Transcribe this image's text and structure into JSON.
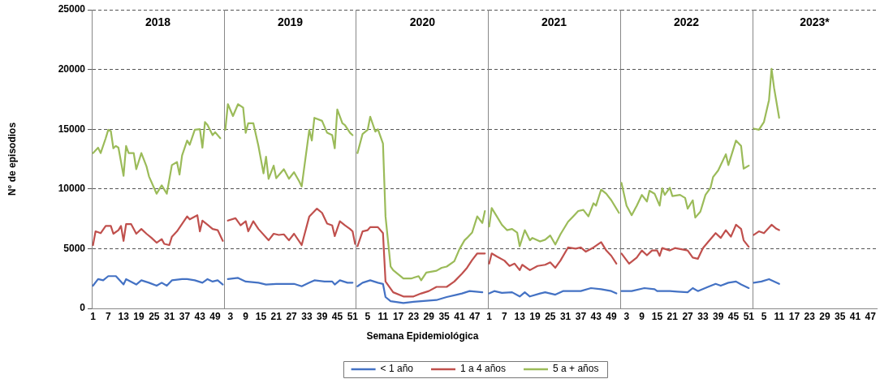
{
  "chart_data": [
    {
      "type": "line",
      "title": "2018",
      "ylabel": "N° de episodios",
      "xlim": [
        0.5,
        52.5
      ],
      "xticks": [
        1,
        7,
        13,
        19,
        25,
        31,
        37,
        43,
        49
      ],
      "ylim": [
        0,
        25000
      ],
      "yticks": [
        0,
        5000,
        10000,
        15000,
        20000,
        25000
      ],
      "grid": "y",
      "marker": "none",
      "line_style": "solid",
      "series": [
        {
          "color": "#4472c4",
          "x": [
            1,
            3,
            5,
            7,
            10,
            13,
            14,
            18,
            20,
            23,
            26,
            28,
            30,
            32,
            36,
            38,
            41,
            44,
            46,
            48,
            50,
            52
          ],
          "values": [
            1900,
            2450,
            2350,
            2700,
            2700,
            2000,
            2450,
            2000,
            2350,
            2150,
            1900,
            2150,
            1900,
            2350,
            2450,
            2450,
            2350,
            2150,
            2450,
            2250,
            2350,
            2000
          ]
        },
        {
          "color": "#c0504d",
          "x": [
            1,
            2,
            4,
            6,
            8,
            9,
            11,
            12,
            13,
            14,
            16,
            18,
            20,
            22,
            24,
            26,
            28,
            29,
            31,
            32,
            34,
            38,
            39,
            42,
            43,
            44,
            46,
            48,
            50,
            52
          ],
          "values": [
            5300,
            6450,
            6300,
            6900,
            6900,
            6250,
            6550,
            6900,
            5650,
            7050,
            7050,
            6250,
            6650,
            6250,
            5900,
            5500,
            5800,
            5400,
            5300,
            6000,
            6450,
            7700,
            7450,
            7800,
            6450,
            7350,
            7000,
            6650,
            6550,
            5650
          ]
        },
        {
          "color": "#9bbb59",
          "x": [
            1,
            3,
            4,
            6,
            7,
            8,
            9,
            10,
            11,
            13,
            14,
            15,
            17,
            18,
            20,
            22,
            23,
            26,
            28,
            30,
            32,
            34,
            35,
            36,
            38,
            39,
            41,
            43,
            44,
            45,
            46,
            48,
            49,
            51
          ],
          "values": [
            13000,
            13450,
            13000,
            14250,
            14950,
            14850,
            13400,
            13600,
            13450,
            11100,
            13600,
            13000,
            13000,
            11650,
            13000,
            11900,
            11050,
            9600,
            10300,
            9600,
            12000,
            12250,
            11200,
            12800,
            14050,
            13700,
            14950,
            15000,
            13450,
            15600,
            15350,
            14500,
            14750,
            14250
          ]
        }
      ]
    },
    {
      "type": "line",
      "title": "2019",
      "xlim": [
        0.5,
        52.5
      ],
      "xticks": [
        3,
        9,
        15,
        21,
        27,
        33,
        39,
        45,
        51
      ],
      "ylim": [
        0,
        25000
      ],
      "yticks": [
        0,
        5000,
        10000,
        15000,
        20000,
        25000
      ],
      "tick_labels": "x",
      "grid": "y",
      "marker": "none",
      "line_style": "solid",
      "series": [
        {
          "color": "#4472c4",
          "x": [
            2,
            6,
            9,
            14,
            17,
            21,
            24,
            28,
            31,
            34,
            36,
            40,
            43,
            44,
            46,
            49,
            51
          ],
          "values": [
            2450,
            2550,
            2250,
            2150,
            2000,
            2050,
            2050,
            2050,
            1850,
            2150,
            2350,
            2250,
            2250,
            2000,
            2350,
            2150,
            2150
          ]
        },
        {
          "color": "#c0504d",
          "x": [
            2,
            5,
            7,
            9,
            10,
            12,
            14,
            18,
            20,
            22,
            24,
            26,
            28,
            31,
            34,
            37,
            39,
            41,
            43,
            44,
            46,
            48,
            50,
            51,
            52
          ],
          "values": [
            7350,
            7550,
            6950,
            7300,
            6450,
            7300,
            6650,
            5700,
            6250,
            6150,
            6200,
            5700,
            6250,
            5300,
            7700,
            8350,
            8000,
            7100,
            6950,
            6050,
            7300,
            6950,
            6650,
            6450,
            5400
          ]
        },
        {
          "color": "#9bbb59",
          "x": [
            1,
            2,
            4,
            6,
            8,
            9,
            10,
            12,
            14,
            16,
            17,
            18,
            20,
            21,
            24,
            26,
            28,
            30,
            31,
            34,
            35,
            36,
            39,
            41,
            43,
            44,
            45,
            47,
            48,
            50,
            51
          ],
          "values": [
            14950,
            17100,
            16100,
            17100,
            16800,
            14700,
            15500,
            15500,
            13600,
            11300,
            12700,
            10850,
            11950,
            10900,
            11650,
            10850,
            11400,
            10650,
            10200,
            14950,
            14050,
            15950,
            15700,
            14700,
            14500,
            13400,
            16650,
            15500,
            15350,
            14700,
            14500
          ]
        }
      ]
    },
    {
      "type": "line",
      "title": "2020",
      "xlabel": "Semana Epidemiológica",
      "xlim": [
        0.5,
        52.5
      ],
      "xticks": [
        5,
        11,
        17,
        23,
        29,
        35,
        41,
        47
      ],
      "ylim": [
        0,
        25000
      ],
      "yticks": [
        0,
        5000,
        10000,
        15000,
        20000,
        25000
      ],
      "tick_labels": "x",
      "grid": "y",
      "legend": "bottom",
      "marker": "none",
      "line_style": "solid",
      "series": [
        {
          "name": "< 1 año",
          "color": "#4472c4",
          "x": [
            1,
            3,
            6,
            9,
            11,
            12,
            14,
            19,
            23,
            26,
            32,
            36,
            40,
            42,
            45,
            50
          ],
          "values": [
            1850,
            2150,
            2350,
            2150,
            2050,
            950,
            600,
            450,
            550,
            600,
            700,
            950,
            1150,
            1250,
            1450,
            1350
          ]
        },
        {
          "name": "1 a 4 años",
          "color": "#c0504d",
          "x": [
            1,
            3,
            5,
            6,
            9,
            11,
            12,
            15,
            19,
            23,
            26,
            29,
            32,
            36,
            39,
            42,
            44,
            46,
            48,
            51
          ],
          "values": [
            5200,
            6450,
            6550,
            6800,
            6800,
            6300,
            2250,
            1350,
            1000,
            1000,
            1250,
            1450,
            1800,
            1800,
            2250,
            2900,
            3400,
            4050,
            4600,
            4600
          ]
        },
        {
          "name": "5 a + años",
          "color": "#9bbb59",
          "x": [
            1,
            3,
            5,
            6,
            8,
            9,
            11,
            12,
            14,
            15,
            19,
            22,
            25,
            26,
            28,
            32,
            34,
            36,
            39,
            41,
            43,
            44,
            46,
            48,
            50,
            51
          ],
          "values": [
            13000,
            14600,
            14950,
            16050,
            14800,
            15000,
            13800,
            7700,
            3500,
            3200,
            2500,
            2500,
            2700,
            2350,
            3000,
            3150,
            3400,
            3500,
            3950,
            4950,
            5700,
            5900,
            6350,
            7700,
            7150,
            8150
          ]
        }
      ]
    },
    {
      "type": "line",
      "title": "2021",
      "xlim": [
        0.5,
        52.5
      ],
      "xticks": [
        1,
        7,
        13,
        19,
        25,
        31,
        37,
        43,
        49
      ],
      "ylim": [
        0,
        25000
      ],
      "yticks": [
        0,
        5000,
        10000,
        15000,
        20000,
        25000
      ],
      "tick_labels": "x",
      "grid": "y",
      "marker": "none",
      "line_style": "solid",
      "series": [
        {
          "color": "#4472c4",
          "x": [
            1,
            3,
            6,
            10,
            13,
            15,
            17,
            21,
            23,
            27,
            30,
            34,
            37,
            41,
            45,
            49,
            51
          ],
          "values": [
            1250,
            1450,
            1300,
            1350,
            1000,
            1350,
            1000,
            1250,
            1350,
            1150,
            1450,
            1450,
            1450,
            1700,
            1600,
            1450,
            1250
          ]
        },
        {
          "color": "#c0504d",
          "x": [
            1,
            2,
            4,
            7,
            9,
            11,
            13,
            14,
            17,
            20,
            23,
            25,
            27,
            29,
            32,
            35,
            37,
            39,
            42,
            45,
            47,
            49,
            51
          ],
          "values": [
            3750,
            4600,
            4350,
            4000,
            3550,
            3750,
            3200,
            3650,
            3200,
            3550,
            3650,
            3850,
            3400,
            4000,
            5100,
            5000,
            5100,
            4750,
            5100,
            5550,
            4850,
            4400,
            3750
          ]
        },
        {
          "color": "#9bbb59",
          "x": [
            1,
            2,
            4,
            6,
            8,
            10,
            12,
            13,
            15,
            17,
            18,
            21,
            23,
            25,
            27,
            29,
            32,
            34,
            36,
            38,
            40,
            42,
            43,
            45,
            47,
            49,
            52
          ],
          "values": [
            6850,
            8400,
            7700,
            7000,
            6550,
            6650,
            6350,
            5200,
            6550,
            5700,
            5900,
            5600,
            5750,
            6100,
            5350,
            6200,
            7250,
            7700,
            8150,
            8250,
            7700,
            8800,
            8600,
            9950,
            9600,
            9050,
            8000
          ]
        }
      ]
    },
    {
      "type": "line",
      "title": "2022",
      "xlim": [
        0.5,
        52.5
      ],
      "xticks": [
        3,
        9,
        15,
        21,
        27,
        33,
        39,
        45,
        51
      ],
      "ylim": [
        0,
        25000
      ],
      "yticks": [
        0,
        5000,
        10000,
        15000,
        20000,
        25000
      ],
      "tick_labels": "x",
      "grid": "y",
      "marker": "none",
      "line_style": "solid",
      "series": [
        {
          "color": "#4472c4",
          "x": [
            1,
            5,
            10,
            14,
            15,
            20,
            23,
            27,
            29,
            31,
            35,
            38,
            40,
            43,
            46,
            48,
            51
          ],
          "values": [
            1450,
            1450,
            1700,
            1600,
            1450,
            1450,
            1400,
            1350,
            1700,
            1450,
            1800,
            2050,
            1900,
            2150,
            2250,
            2000,
            1700
          ]
        },
        {
          "color": "#c0504d",
          "x": [
            1,
            4,
            7,
            9,
            11,
            13,
            15,
            16,
            17,
            20,
            22,
            27,
            29,
            31,
            33,
            35,
            38,
            40,
            42,
            44,
            46,
            48,
            49,
            51
          ],
          "values": [
            4600,
            3750,
            4250,
            4850,
            4450,
            4850,
            4850,
            4400,
            5050,
            4850,
            5050,
            4850,
            4250,
            4150,
            5050,
            5550,
            6300,
            5900,
            6550,
            6000,
            7000,
            6650,
            5700,
            5150
          ]
        },
        {
          "color": "#9bbb59",
          "x": [
            1,
            3,
            5,
            7,
            9,
            11,
            12,
            14,
            16,
            17,
            18,
            20,
            21,
            24,
            26,
            27,
            29,
            30,
            32,
            34,
            36,
            37,
            39,
            42,
            43,
            46,
            48,
            49,
            51
          ],
          "values": [
            10500,
            8600,
            7800,
            8600,
            9500,
            8950,
            9850,
            9600,
            8600,
            10050,
            9500,
            10100,
            9400,
            9500,
            9250,
            8350,
            9050,
            7600,
            8100,
            9500,
            10100,
            11000,
            11550,
            12900,
            12000,
            14050,
            13600,
            11700,
            11950
          ]
        }
      ]
    },
    {
      "type": "line",
      "title": "2023*",
      "xlim": [
        0.5,
        49.5
      ],
      "xticks": [
        5,
        11,
        17,
        23,
        29,
        35,
        41,
        47
      ],
      "ylim": [
        0,
        25000
      ],
      "yticks": [
        0,
        5000,
        10000,
        15000,
        20000,
        25000
      ],
      "tick_labels": "x",
      "grid": "y",
      "marker": "none",
      "line_style": "solid",
      "series": [
        {
          "color": "#4472c4",
          "x": [
            1,
            4,
            7,
            11
          ],
          "values": [
            2150,
            2250,
            2450,
            2050
          ]
        },
        {
          "color": "#c0504d",
          "x": [
            1,
            3,
            5,
            8,
            10,
            11
          ],
          "values": [
            6150,
            6450,
            6300,
            7000,
            6650,
            6550
          ]
        },
        {
          "color": "#9bbb59",
          "x": [
            1,
            3,
            5,
            7,
            8,
            9,
            11
          ],
          "values": [
            15050,
            14950,
            15600,
            17450,
            20050,
            18450,
            15950
          ]
        }
      ]
    }
  ]
}
